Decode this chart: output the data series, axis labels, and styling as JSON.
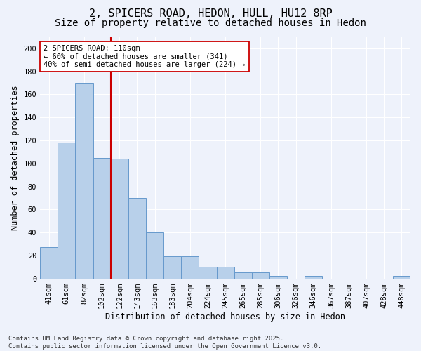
{
  "title1": "2, SPICERS ROAD, HEDON, HULL, HU12 8RP",
  "title2": "Size of property relative to detached houses in Hedon",
  "xlabel": "Distribution of detached houses by size in Hedon",
  "ylabel": "Number of detached properties",
  "bar_labels": [
    "41sqm",
    "61sqm",
    "82sqm",
    "102sqm",
    "122sqm",
    "143sqm",
    "163sqm",
    "183sqm",
    "204sqm",
    "224sqm",
    "245sqm",
    "265sqm",
    "285sqm",
    "306sqm",
    "326sqm",
    "346sqm",
    "367sqm",
    "387sqm",
    "407sqm",
    "428sqm",
    "448sqm"
  ],
  "bar_values": [
    27,
    118,
    170,
    105,
    104,
    70,
    40,
    19,
    19,
    10,
    10,
    5,
    5,
    2,
    0,
    2,
    0,
    0,
    0,
    0,
    2
  ],
  "bar_color": "#b8d0ea",
  "bar_edge_color": "#6699cc",
  "vline_color": "#cc0000",
  "annotation_text": "2 SPICERS ROAD: 110sqm\n← 60% of detached houses are smaller (341)\n40% of semi-detached houses are larger (224) →",
  "annotation_box_color": "#ffffff",
  "annotation_box_edge": "#cc0000",
  "footer": "Contains HM Land Registry data © Crown copyright and database right 2025.\nContains public sector information licensed under the Open Government Licence v3.0.",
  "ylim": [
    0,
    210
  ],
  "yticks": [
    0,
    20,
    40,
    60,
    80,
    100,
    120,
    140,
    160,
    180,
    200
  ],
  "background_color": "#eef2fb",
  "grid_color": "#ffffff",
  "title_fontsize": 11,
  "subtitle_fontsize": 10,
  "tick_fontsize": 7.5,
  "label_fontsize": 8.5,
  "footer_fontsize": 6.5,
  "annotation_fontsize": 7.5
}
